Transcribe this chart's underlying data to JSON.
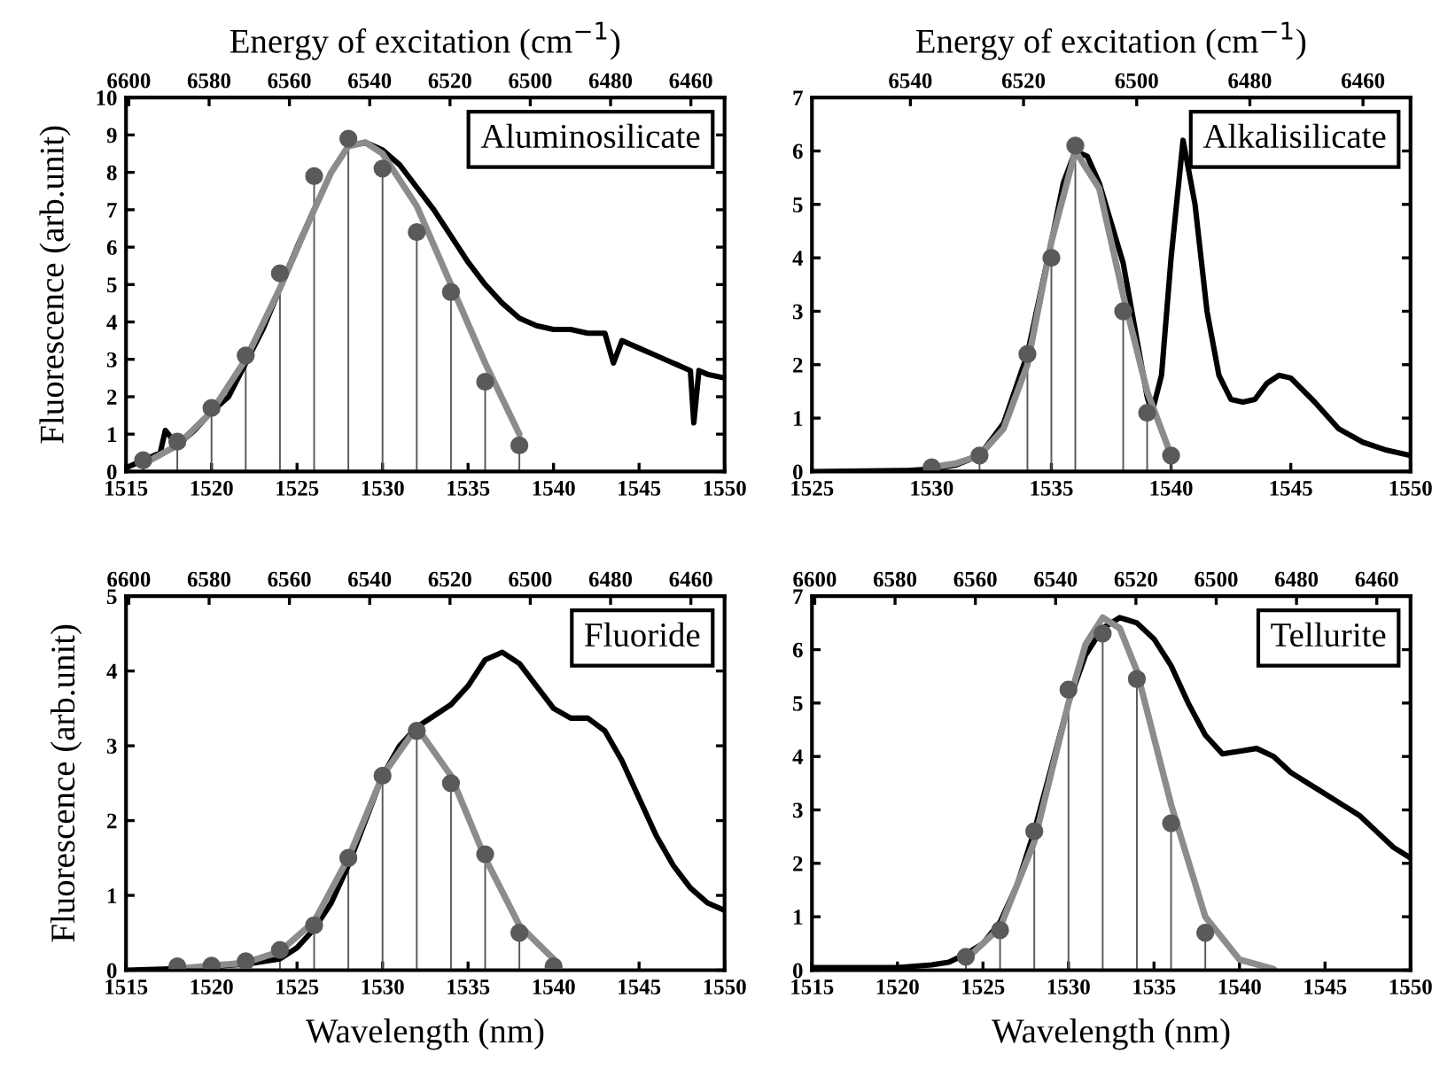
{
  "chart_data": [
    {
      "type": "line",
      "x2label": "Energy of excitation (cm$^{−1}$)",
      "ylabel": "Fluorescence (arb.unit)",
      "annotations": [
        "Aluminosilicate"
      ],
      "xlim": [
        1515,
        1550
      ],
      "xticks": [
        1515,
        1520,
        1525,
        1530,
        1535,
        1540,
        1545,
        1550
      ],
      "ylim": [
        0,
        10
      ],
      "yticks": [
        0,
        1,
        2,
        3,
        4,
        5,
        6,
        7,
        8,
        9,
        10
      ],
      "x2lim": [
        6600.7,
        6451.6
      ],
      "x2ticks": [
        6600,
        6580,
        6560,
        6540,
        6520,
        6500,
        6480,
        6460
      ],
      "series": [
        {
          "type": "lollipop",
          "color": "#5a5a5a",
          "x": [
            1516,
            1518,
            1520,
            1522,
            1524,
            1526,
            1528,
            1530,
            1532,
            1534,
            1536,
            1538
          ],
          "values": [
            0.3,
            0.8,
            1.7,
            3.1,
            5.3,
            7.9,
            8.9,
            8.1,
            6.4,
            4.8,
            2.4,
            0.7
          ]
        },
        {
          "color": "#000000",
          "x": [
            1515,
            1516,
            1517,
            1517.3,
            1518,
            1519,
            1520,
            1521,
            1522,
            1523,
            1524,
            1525,
            1526,
            1527,
            1528,
            1529,
            1530,
            1531,
            1532,
            1533,
            1534,
            1535,
            1536,
            1537,
            1538,
            1539,
            1540,
            1541,
            1542,
            1543,
            1543.5,
            1544,
            1545,
            1546,
            1547,
            1548,
            1548.2,
            1548.5,
            1549,
            1550
          ],
          "values": [
            0.1,
            0.3,
            0.5,
            1.1,
            0.7,
            1.1,
            1.6,
            2.0,
            2.9,
            3.8,
            4.9,
            6.0,
            7.0,
            8.0,
            8.7,
            8.8,
            8.6,
            8.2,
            7.6,
            7.0,
            6.3,
            5.6,
            5.0,
            4.5,
            4.1,
            3.9,
            3.8,
            3.8,
            3.7,
            3.7,
            2.9,
            3.5,
            3.3,
            3.1,
            2.9,
            2.7,
            1.3,
            2.7,
            2.6,
            2.5
          ]
        },
        {
          "color": "#8c8c8c",
          "x": [
            1516,
            1518,
            1520,
            1522,
            1524,
            1526,
            1527,
            1528,
            1529,
            1530,
            1532,
            1534,
            1536,
            1538
          ],
          "values": [
            0.2,
            0.7,
            1.6,
            3.0,
            4.9,
            7.0,
            8.0,
            8.7,
            8.8,
            8.5,
            7.1,
            5.0,
            2.9,
            1.0
          ]
        }
      ]
    },
    {
      "type": "line",
      "x2label": "Energy of excitation (cm$^{−1}$)",
      "annotations": [
        "Alkalisilicate"
      ],
      "xlim": [
        1525,
        1550
      ],
      "xticks": [
        1525,
        1530,
        1535,
        1540,
        1545,
        1550
      ],
      "ylim": [
        0,
        7
      ],
      "yticks": [
        0,
        1,
        2,
        3,
        4,
        5,
        6,
        7
      ],
      "x2lim": [
        6557.4,
        6451.6
      ],
      "x2ticks": [
        6540,
        6520,
        6500,
        6480,
        6460
      ],
      "series": [
        {
          "type": "lollipop",
          "color": "#5a5a5a",
          "x": [
            1530,
            1532,
            1534,
            1535,
            1536,
            1538,
            1539,
            1540
          ],
          "values": [
            0.08,
            0.3,
            2.2,
            4.0,
            6.1,
            3.0,
            1.1,
            0.3
          ]
        },
        {
          "color": "#000000",
          "x": [
            1525,
            1529,
            1530,
            1531,
            1532,
            1533,
            1534,
            1535,
            1535.5,
            1536,
            1536.5,
            1537,
            1538,
            1539,
            1539.2,
            1539.6,
            1540,
            1540.5,
            1541,
            1541.5,
            1542,
            1542.5,
            1543,
            1543.5,
            1544,
            1544.5,
            1545,
            1546,
            1547,
            1548,
            1549,
            1550
          ],
          "values": [
            0,
            0.02,
            0.05,
            0.12,
            0.3,
            0.9,
            2.2,
            4.3,
            5.4,
            6.0,
            5.9,
            5.4,
            3.9,
            1.4,
            1.1,
            1.8,
            4.0,
            6.2,
            5.0,
            3.0,
            1.8,
            1.35,
            1.3,
            1.35,
            1.65,
            1.8,
            1.75,
            1.3,
            0.8,
            0.55,
            0.4,
            0.3
          ]
        },
        {
          "color": "#8c8c8c",
          "x": [
            1530,
            1531,
            1532,
            1533,
            1534,
            1535,
            1536,
            1537,
            1538,
            1539,
            1540
          ],
          "values": [
            0.08,
            0.15,
            0.3,
            0.8,
            2.0,
            4.3,
            6.0,
            5.3,
            3.3,
            1.5,
            0.3
          ]
        }
      ]
    },
    {
      "type": "line",
      "xlabel": "Wavelength (nm)",
      "ylabel": "Fluorescence (arb.unit)",
      "annotations": [
        "Fluoride"
      ],
      "xlim": [
        1515,
        1550
      ],
      "xticks": [
        1515,
        1520,
        1525,
        1530,
        1535,
        1540,
        1545,
        1550
      ],
      "ylim": [
        0,
        5
      ],
      "yticks": [
        0,
        1,
        2,
        3,
        4,
        5
      ],
      "x2lim": [
        6600.7,
        6451.6
      ],
      "x2ticks": [
        6600,
        6580,
        6560,
        6540,
        6520,
        6500,
        6480,
        6460
      ],
      "series": [
        {
          "type": "lollipop",
          "color": "#5a5a5a",
          "x": [
            1518,
            1520,
            1522,
            1524,
            1526,
            1528,
            1530,
            1532,
            1534,
            1536,
            1538,
            1540
          ],
          "values": [
            0.05,
            0.06,
            0.12,
            0.27,
            0.6,
            1.5,
            2.6,
            3.2,
            2.5,
            1.55,
            0.5,
            0.05
          ]
        },
        {
          "color": "#000000",
          "x": [
            1515,
            1518,
            1520,
            1522,
            1524,
            1525,
            1526,
            1527,
            1528,
            1529,
            1530,
            1531,
            1532,
            1533,
            1534,
            1535,
            1536,
            1537,
            1538,
            1539,
            1540,
            1541,
            1542,
            1543,
            1544,
            1545,
            1546,
            1547,
            1548,
            1549,
            1550
          ],
          "values": [
            0,
            0.02,
            0.05,
            0.08,
            0.15,
            0.3,
            0.55,
            0.9,
            1.4,
            2.0,
            2.6,
            3.0,
            3.25,
            3.4,
            3.55,
            3.8,
            4.15,
            4.25,
            4.1,
            3.8,
            3.5,
            3.37,
            3.37,
            3.2,
            2.8,
            2.3,
            1.8,
            1.4,
            1.1,
            0.9,
            0.8
          ]
        },
        {
          "color": "#8c8c8c",
          "x": [
            1518,
            1522,
            1524,
            1526,
            1528,
            1530,
            1532,
            1534,
            1536,
            1538,
            1540
          ],
          "values": [
            0.02,
            0.1,
            0.25,
            0.65,
            1.5,
            2.6,
            3.25,
            2.6,
            1.5,
            0.6,
            0.15
          ]
        }
      ]
    },
    {
      "type": "line",
      "xlabel": "Wavelength (nm)",
      "annotations": [
        "Tellurite"
      ],
      "xlim": [
        1515,
        1550
      ],
      "xticks": [
        1515,
        1520,
        1525,
        1530,
        1535,
        1540,
        1545,
        1550
      ],
      "ylim": [
        0,
        7
      ],
      "yticks": [
        0,
        1,
        2,
        3,
        4,
        5,
        6,
        7
      ],
      "x2lim": [
        6600.7,
        6451.6
      ],
      "x2ticks": [
        6600,
        6580,
        6560,
        6540,
        6520,
        6500,
        6480,
        6460
      ],
      "series": [
        {
          "type": "lollipop",
          "color": "#5a5a5a",
          "x": [
            1524,
            1526,
            1528,
            1530,
            1532,
            1534,
            1536,
            1538
          ],
          "values": [
            0.25,
            0.75,
            2.6,
            5.25,
            6.3,
            5.45,
            2.75,
            0.7
          ]
        },
        {
          "color": "#000000",
          "x": [
            1515,
            1520,
            1522,
            1523,
            1524,
            1525,
            1526,
            1527,
            1528,
            1529,
            1530,
            1531,
            1532,
            1533,
            1534,
            1535,
            1536,
            1537,
            1538,
            1539,
            1540,
            1541,
            1542,
            1543,
            1544,
            1545,
            1546,
            1547,
            1548,
            1549,
            1550
          ],
          "values": [
            0.05,
            0.05,
            0.1,
            0.15,
            0.3,
            0.5,
            0.9,
            1.6,
            2.6,
            3.8,
            5.0,
            5.9,
            6.4,
            6.6,
            6.5,
            6.2,
            5.7,
            5.0,
            4.4,
            4.05,
            4.1,
            4.15,
            4.0,
            3.7,
            3.5,
            3.3,
            3.1,
            2.9,
            2.6,
            2.3,
            2.1
          ]
        },
        {
          "color": "#8c8c8c",
          "x": [
            1524,
            1526,
            1528,
            1530,
            1531,
            1532,
            1533,
            1534,
            1536,
            1538,
            1540,
            1542
          ],
          "values": [
            0.2,
            0.8,
            2.4,
            5.0,
            6.1,
            6.6,
            6.4,
            5.6,
            3.1,
            1.0,
            0.2,
            0.02
          ]
        }
      ]
    }
  ]
}
